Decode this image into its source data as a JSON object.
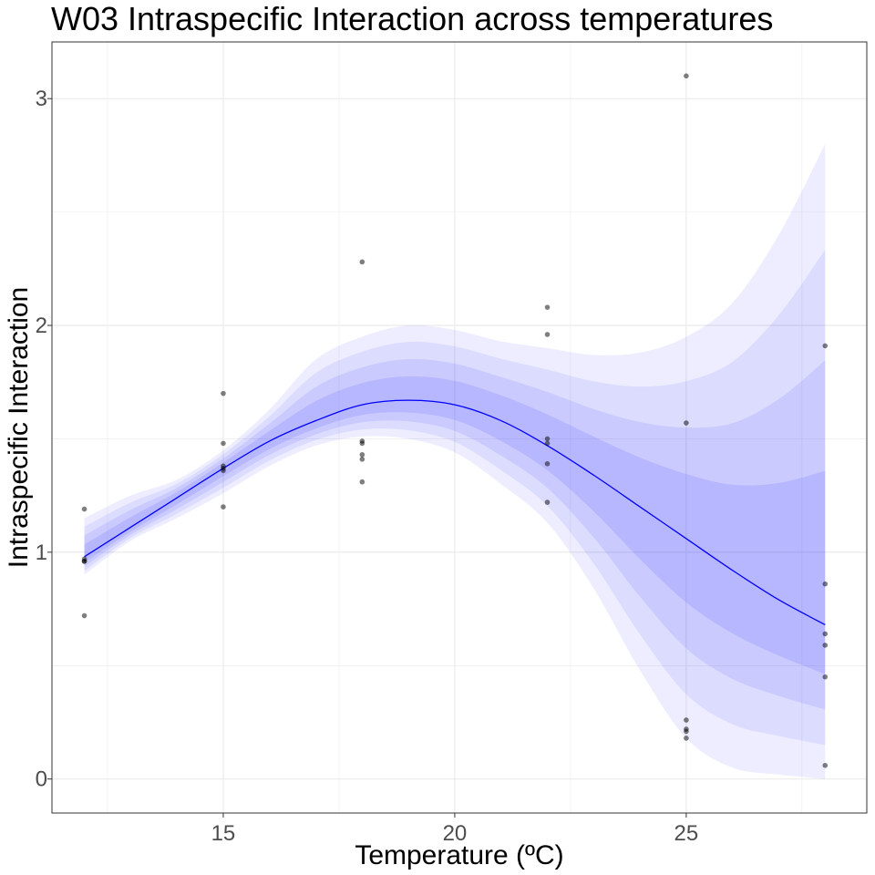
{
  "chart_data": {
    "type": "scatter",
    "title": "W03 Intraspecific Interaction across temperatures",
    "xlabel": "Temperature (ºC)",
    "ylabel": "Intraspecific Interaction",
    "xlim": [
      11.3,
      28.9
    ],
    "ylim": [
      -0.15,
      3.25
    ],
    "x_ticks": [
      15,
      20,
      25
    ],
    "y_ticks": [
      0,
      1,
      2,
      3
    ],
    "grid": true,
    "colors": {
      "fit": "#0000ff",
      "points": "#000000",
      "grid": "#ebebeb",
      "panel_border": "#333333"
    },
    "series": [
      {
        "type": "scatter",
        "points": [
          [
            12,
            1.19
          ],
          [
            12,
            0.97
          ],
          [
            12,
            0.96
          ],
          [
            12,
            0.96
          ],
          [
            12,
            0.72
          ],
          [
            15,
            1.7
          ],
          [
            15,
            1.48
          ],
          [
            15,
            1.38
          ],
          [
            15,
            1.37
          ],
          [
            15,
            1.36
          ],
          [
            15,
            1.2
          ],
          [
            18,
            2.28
          ],
          [
            18,
            1.49
          ],
          [
            18,
            1.48
          ],
          [
            18,
            1.43
          ],
          [
            18,
            1.41
          ],
          [
            18,
            1.31
          ],
          [
            22,
            2.08
          ],
          [
            22,
            1.96
          ],
          [
            22,
            1.5
          ],
          [
            22,
            1.48
          ],
          [
            22,
            1.39
          ],
          [
            22,
            1.22
          ],
          [
            25,
            3.1
          ],
          [
            25,
            1.57
          ],
          [
            25,
            0.26
          ],
          [
            25,
            0.22
          ],
          [
            25,
            0.21
          ],
          [
            25,
            0.18
          ],
          [
            28,
            1.91
          ],
          [
            28,
            0.86
          ],
          [
            28,
            0.64
          ],
          [
            28,
            0.59
          ],
          [
            28,
            0.45
          ],
          [
            28,
            0.06
          ]
        ]
      },
      {
        "type": "line",
        "x": [
          12,
          13,
          14,
          15,
          16,
          17,
          18,
          19,
          20,
          21,
          22,
          23,
          24,
          25,
          26,
          27,
          28
        ],
        "values": [
          0.98,
          1.11,
          1.24,
          1.37,
          1.49,
          1.58,
          1.65,
          1.67,
          1.65,
          1.58,
          1.47,
          1.34,
          1.2,
          1.06,
          0.92,
          0.79,
          0.68
        ]
      }
    ],
    "uncertainty_band": {
      "x": [
        12,
        13,
        14,
        15,
        16,
        17,
        18,
        19,
        20,
        21,
        22,
        23,
        24,
        25,
        26,
        27,
        28
      ],
      "lower": [
        0.9,
        1.05,
        1.15,
        1.26,
        1.38,
        1.47,
        1.51,
        1.5,
        1.44,
        1.3,
        1.13,
        0.84,
        0.48,
        0.18,
        0.05,
        0.02,
        0.0
      ],
      "upper": [
        1.15,
        1.25,
        1.32,
        1.45,
        1.63,
        1.85,
        1.95,
        2.0,
        1.98,
        1.93,
        1.9,
        1.87,
        1.88,
        1.95,
        2.1,
        2.4,
        2.8
      ]
    }
  }
}
